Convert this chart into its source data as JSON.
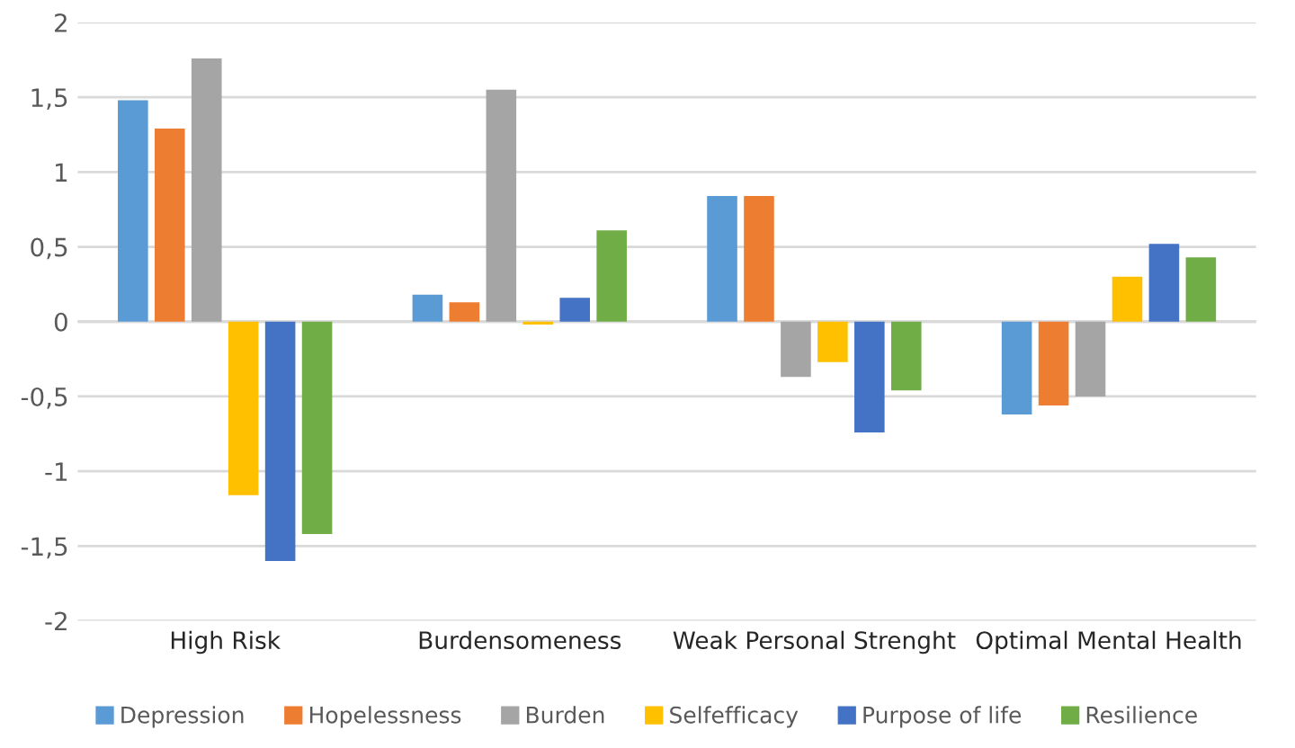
{
  "chart_data": {
    "type": "bar",
    "categories": [
      "High Risk",
      "Burdensomeness",
      "Weak Personal Strenght",
      "Optimal Mental Health"
    ],
    "series": [
      {
        "name": "Depression",
        "color": "#5b9bd5",
        "values": [
          1.48,
          0.18,
          0.84,
          -0.62
        ]
      },
      {
        "name": "Hopelessness",
        "color": "#ed7d31",
        "values": [
          1.29,
          0.13,
          0.84,
          -0.56
        ]
      },
      {
        "name": "Burden",
        "color": "#a5a5a5",
        "values": [
          1.76,
          1.55,
          -0.37,
          -0.5
        ]
      },
      {
        "name": "Selfefficacy",
        "color": "#ffc000",
        "values": [
          -1.16,
          -0.02,
          -0.27,
          0.3
        ]
      },
      {
        "name": "Purpose of life",
        "color": "#4472c4",
        "values": [
          -1.6,
          0.16,
          -0.74,
          0.52
        ]
      },
      {
        "name": "Resilience",
        "color": "#70ad47",
        "values": [
          -1.42,
          0.61,
          -0.46,
          0.43
        ]
      }
    ],
    "ylim": [
      -2,
      2
    ],
    "yticks": [
      {
        "value": -2,
        "label": "-2"
      },
      {
        "value": -1.5,
        "label": "-1,5"
      },
      {
        "value": -1,
        "label": "-1"
      },
      {
        "value": -0.5,
        "label": "-0,5"
      },
      {
        "value": 0,
        "label": "0"
      },
      {
        "value": 0.5,
        "label": "0,5"
      },
      {
        "value": 1,
        "label": "1"
      },
      {
        "value": 1.5,
        "label": "1,5"
      },
      {
        "value": 2,
        "label": "2"
      }
    ],
    "grid": "y",
    "legend": "bottom"
  }
}
